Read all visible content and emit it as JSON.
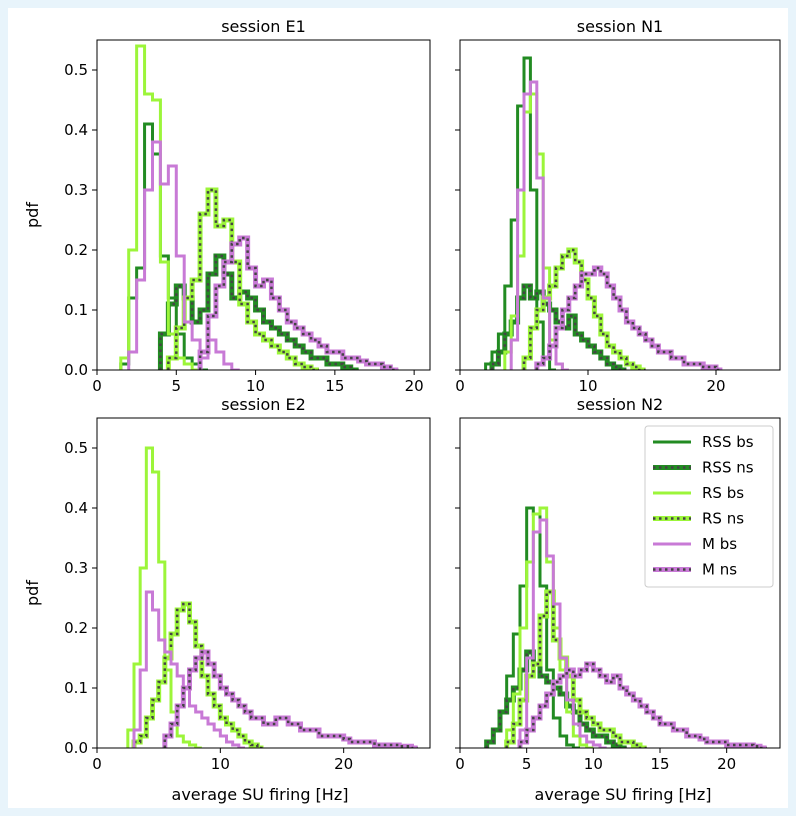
{
  "figure": {
    "xlabel": "average SU firing [Hz]",
    "ylabel": "pdf"
  },
  "styles": {
    "RSS bs": {
      "color": "#228b22",
      "pattern": "solid"
    },
    "RSS ns": {
      "color": "#228b22",
      "pattern": "dots"
    },
    "RS bs": {
      "color": "#9cf53a",
      "pattern": "solid"
    },
    "RS ns": {
      "color": "#9cf53a",
      "pattern": "dots"
    },
    "M bs": {
      "color": "#c87ad6",
      "pattern": "solid"
    },
    "M ns": {
      "color": "#c87ad6",
      "pattern": "dots"
    }
  },
  "legend": {
    "placement": "top-right of session N2",
    "entries": [
      "RSS bs",
      "RSS ns",
      "RS bs",
      "RS ns",
      "M bs",
      "M ns"
    ]
  },
  "chart_data": [
    {
      "type": "histogram-step",
      "title": "session E1",
      "xlim": [
        0,
        21
      ],
      "ylim": [
        0,
        0.55
      ],
      "xticks": [
        0,
        5,
        10,
        15,
        20
      ],
      "yticks": [
        0.0,
        0.1,
        0.2,
        0.3,
        0.4,
        0.5
      ],
      "series": [
        {
          "name": "RSS bs",
          "bin_width": 0.5,
          "x_start": 1.5,
          "values": [
            0.01,
            0.12,
            0.17,
            0.41,
            0.36,
            0.19,
            0.12,
            0.06,
            0.02,
            0.01,
            0.0
          ]
        },
        {
          "name": "RSS ns",
          "bin_width": 0.5,
          "x_start": 4.0,
          "values": [
            0.06,
            0.11,
            0.14,
            0.12,
            0.08,
            0.1,
            0.16,
            0.19,
            0.16,
            0.12,
            0.13,
            0.12,
            0.1,
            0.08,
            0.07,
            0.06,
            0.05,
            0.04,
            0.03,
            0.02,
            0.02,
            0.01,
            0.01,
            0.005,
            0.0
          ]
        },
        {
          "name": "RS bs",
          "bin_width": 0.5,
          "x_start": 1.5,
          "values": [
            0.02,
            0.2,
            0.54,
            0.46,
            0.45,
            0.18,
            0.06,
            0.02,
            0.01,
            0.0
          ]
        },
        {
          "name": "RS ns",
          "bin_width": 0.5,
          "x_start": 4.5,
          "values": [
            0.02,
            0.07,
            0.12,
            0.15,
            0.26,
            0.3,
            0.24,
            0.25,
            0.18,
            0.11,
            0.08,
            0.06,
            0.05,
            0.04,
            0.03,
            0.02,
            0.01,
            0.005,
            0.0
          ]
        },
        {
          "name": "M bs",
          "bin_width": 0.5,
          "x_start": 2.0,
          "values": [
            0.03,
            0.15,
            0.3,
            0.38,
            0.31,
            0.34,
            0.19,
            0.08,
            0.05,
            0.02,
            0.05,
            0.03,
            0.01,
            0.0
          ]
        },
        {
          "name": "M ns",
          "bin_width": 0.5,
          "x_start": 6.5,
          "values": [
            0.03,
            0.09,
            0.14,
            0.18,
            0.21,
            0.22,
            0.17,
            0.14,
            0.15,
            0.12,
            0.1,
            0.08,
            0.07,
            0.06,
            0.05,
            0.04,
            0.03,
            0.03,
            0.02,
            0.02,
            0.015,
            0.01,
            0.01,
            0.005,
            0.0
          ]
        }
      ]
    },
    {
      "type": "histogram-step",
      "title": "session N1",
      "xlim": [
        0,
        25
      ],
      "ylim": [
        0,
        0.55
      ],
      "xticks": [
        0,
        10,
        20
      ],
      "yticks": [
        0.0,
        0.1,
        0.2,
        0.3,
        0.4,
        0.5
      ],
      "series": [
        {
          "name": "RSS bs",
          "bin_width": 0.5,
          "x_start": 2.0,
          "values": [
            0.01,
            0.03,
            0.06,
            0.14,
            0.25,
            0.44,
            0.52,
            0.3,
            0.08,
            0.02,
            0.0
          ]
        },
        {
          "name": "RSS ns",
          "bin_width": 0.5,
          "x_start": 2.5,
          "values": [
            0.01,
            0.03,
            0.06,
            0.08,
            0.12,
            0.14,
            0.12,
            0.13,
            0.11,
            0.1,
            0.08,
            0.07,
            0.09,
            0.06,
            0.05,
            0.04,
            0.03,
            0.02,
            0.01,
            0.005,
            0.0
          ]
        },
        {
          "name": "RS bs",
          "bin_width": 0.5,
          "x_start": 3.5,
          "values": [
            0.03,
            0.09,
            0.19,
            0.43,
            0.46,
            0.36,
            0.17,
            0.05,
            0.01,
            0.0
          ]
        },
        {
          "name": "RS ns",
          "bin_width": 0.5,
          "x_start": 5.0,
          "values": [
            0.02,
            0.07,
            0.1,
            0.12,
            0.14,
            0.17,
            0.19,
            0.2,
            0.18,
            0.15,
            0.12,
            0.09,
            0.06,
            0.04,
            0.03,
            0.02,
            0.01,
            0.005,
            0.0
          ]
        },
        {
          "name": "M bs",
          "bin_width": 0.5,
          "x_start": 4.0,
          "values": [
            0.05,
            0.3,
            0.46,
            0.48,
            0.32,
            0.12,
            0.04,
            0.01,
            0.0
          ]
        },
        {
          "name": "M ns",
          "bin_width": 0.5,
          "x_start": 6.0,
          "values": [
            0.01,
            0.02,
            0.04,
            0.07,
            0.1,
            0.12,
            0.14,
            0.16,
            0.16,
            0.17,
            0.16,
            0.14,
            0.12,
            0.1,
            0.08,
            0.07,
            0.06,
            0.05,
            0.04,
            0.03,
            0.03,
            0.02,
            0.02,
            0.01,
            0.01,
            0.01,
            0.005,
            0.005,
            0.0
          ]
        }
      ]
    },
    {
      "type": "histogram-step",
      "title": "session E2",
      "xlim": [
        0,
        27
      ],
      "ylim": [
        0,
        0.55
      ],
      "xticks": [
        0,
        10,
        20
      ],
      "yticks": [
        0.0,
        0.1,
        0.2,
        0.3,
        0.4,
        0.5
      ],
      "series": [
        {
          "name": "RS bs",
          "bin_width": 0.5,
          "x_start": 2.5,
          "values": [
            0.03,
            0.14,
            0.3,
            0.5,
            0.46,
            0.31,
            0.13,
            0.06,
            0.02,
            0.01,
            0.005,
            0.0
          ]
        },
        {
          "name": "RS ns",
          "bin_width": 0.5,
          "x_start": 3.0,
          "values": [
            0.01,
            0.02,
            0.05,
            0.08,
            0.11,
            0.15,
            0.19,
            0.23,
            0.24,
            0.21,
            0.17,
            0.12,
            0.09,
            0.07,
            0.05,
            0.04,
            0.03,
            0.02,
            0.01,
            0.005,
            0.0
          ]
        },
        {
          "name": "M bs",
          "bin_width": 0.5,
          "x_start": 3.0,
          "values": [
            0.03,
            0.13,
            0.26,
            0.23,
            0.18,
            0.16,
            0.14,
            0.12,
            0.1,
            0.07,
            0.06,
            0.05,
            0.04,
            0.03,
            0.02,
            0.01,
            0.005,
            0.0
          ]
        },
        {
          "name": "M ns",
          "bin_width": 0.5,
          "x_start": 5.5,
          "values": [
            0.02,
            0.04,
            0.07,
            0.1,
            0.13,
            0.15,
            0.16,
            0.14,
            0.12,
            0.1,
            0.09,
            0.08,
            0.07,
            0.06,
            0.05,
            0.05,
            0.04,
            0.04,
            0.05,
            0.05,
            0.04,
            0.04,
            0.03,
            0.03,
            0.03,
            0.02,
            0.02,
            0.02,
            0.02,
            0.015,
            0.01,
            0.01,
            0.01,
            0.01,
            0.005,
            0.005,
            0.005,
            0.005,
            0.003,
            0.003,
            0.0
          ]
        }
      ]
    },
    {
      "type": "histogram-step",
      "title": "session N2",
      "xlim": [
        0,
        24
      ],
      "ylim": [
        0,
        0.55
      ],
      "xticks": [
        0,
        5,
        10,
        15,
        20
      ],
      "yticks": [
        0.0,
        0.1,
        0.2,
        0.3,
        0.4,
        0.5
      ],
      "series": [
        {
          "name": "RSS bs",
          "bin_width": 0.5,
          "x_start": 2.0,
          "values": [
            0.01,
            0.03,
            0.06,
            0.12,
            0.19,
            0.27,
            0.4,
            0.39,
            0.27,
            0.13,
            0.05,
            0.02,
            0.005,
            0.0
          ]
        },
        {
          "name": "RSS ns",
          "bin_width": 0.5,
          "x_start": 2.0,
          "values": [
            0.01,
            0.03,
            0.06,
            0.08,
            0.1,
            0.13,
            0.16,
            0.14,
            0.12,
            0.11,
            0.1,
            0.09,
            0.07,
            0.06,
            0.04,
            0.03,
            0.02,
            0.02,
            0.01,
            0.005,
            0.0
          ]
        },
        {
          "name": "RS bs",
          "bin_width": 0.5,
          "x_start": 3.5,
          "values": [
            0.03,
            0.09,
            0.2,
            0.31,
            0.39,
            0.4,
            0.31,
            0.2,
            0.13,
            0.06,
            0.02,
            0.005,
            0.0
          ]
        },
        {
          "name": "RS ns",
          "bin_width": 0.5,
          "x_start": 3.5,
          "values": [
            0.01,
            0.04,
            0.08,
            0.12,
            0.14,
            0.22,
            0.26,
            0.18,
            0.15,
            0.12,
            0.08,
            0.06,
            0.05,
            0.04,
            0.03,
            0.03,
            0.02,
            0.01,
            0.01,
            0.005,
            0.0
          ]
        },
        {
          "name": "M bs",
          "bin_width": 0.5,
          "x_start": 4.5,
          "values": [
            0.03,
            0.15,
            0.36,
            0.38,
            0.32,
            0.24,
            0.15,
            0.08,
            0.04,
            0.02,
            0.01,
            0.005,
            0.0
          ]
        },
        {
          "name": "M ns",
          "bin_width": 0.5,
          "x_start": 4.5,
          "values": [
            0.01,
            0.03,
            0.05,
            0.07,
            0.09,
            0.11,
            0.12,
            0.13,
            0.12,
            0.13,
            0.14,
            0.13,
            0.12,
            0.11,
            0.12,
            0.1,
            0.09,
            0.08,
            0.07,
            0.06,
            0.05,
            0.04,
            0.04,
            0.03,
            0.03,
            0.02,
            0.02,
            0.015,
            0.01,
            0.01,
            0.01,
            0.005,
            0.005,
            0.005,
            0.005,
            0.003,
            0.0
          ]
        }
      ]
    }
  ]
}
